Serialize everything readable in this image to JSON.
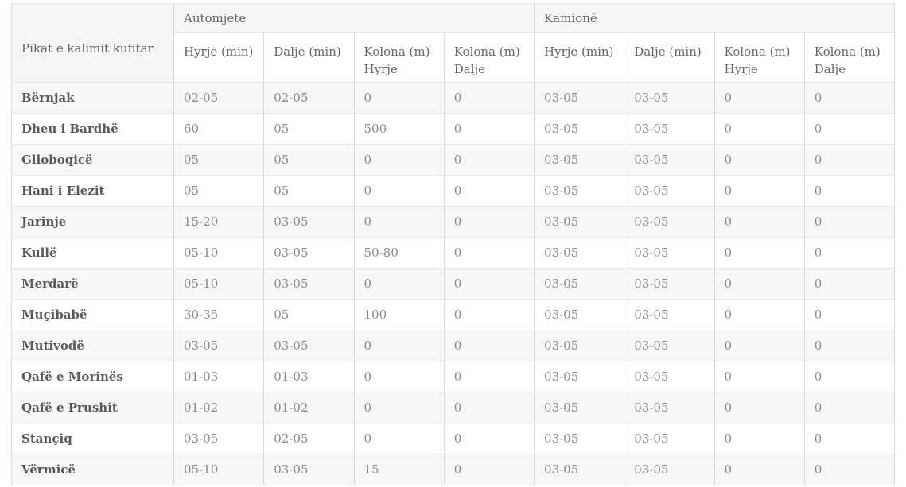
{
  "chart_data": {
    "type": "table",
    "title": "Pikat e kalimit kufitar",
    "column_groups": [
      "Automjete",
      "Kamionë"
    ],
    "columns": [
      "Hyrje (min)",
      "Dalje (min)",
      "Kolona (m) Hyrje",
      "Kolona (m) Dalje",
      "Hyrje (min)",
      "Dalje (min)",
      "Kolona (m) Hyrje",
      "Kolona (m) Dalje"
    ],
    "rows": [
      {
        "name": "Bërnjak",
        "values": [
          "02-05",
          "02-05",
          "0",
          "0",
          "03-05",
          "03-05",
          "0",
          "0"
        ]
      },
      {
        "name": "Dheu i Bardhë",
        "values": [
          "60",
          "05",
          "500",
          "0",
          "03-05",
          "03-05",
          "0",
          "0"
        ]
      },
      {
        "name": "Glloboqicë",
        "values": [
          "05",
          "05",
          "0",
          "0",
          "03-05",
          "03-05",
          "0",
          "0"
        ]
      },
      {
        "name": "Hani i Elezit",
        "values": [
          "05",
          "05",
          "0",
          "0",
          "03-05",
          "03-05",
          "0",
          "0"
        ]
      },
      {
        "name": "Jarinje",
        "values": [
          "15-20",
          "03-05",
          "0",
          "0",
          "03-05",
          "03-05",
          "0",
          "0"
        ]
      },
      {
        "name": "Kullë",
        "values": [
          "05-10",
          "03-05",
          "50-80",
          "0",
          "03-05",
          "03-05",
          "0",
          "0"
        ]
      },
      {
        "name": "Merdarë",
        "values": [
          "05-10",
          "03-05",
          "0",
          "0",
          "03-05",
          "03-05",
          "0",
          "0"
        ]
      },
      {
        "name": "Muçibabë",
        "values": [
          "30-35",
          "05",
          "100",
          "0",
          "03-05",
          "03-05",
          "0",
          "0"
        ]
      },
      {
        "name": "Mutivodë",
        "values": [
          "03-05",
          "03-05",
          "0",
          "0",
          "03-05",
          "03-05",
          "0",
          "0"
        ]
      },
      {
        "name": "Qafë e Morinës",
        "values": [
          "01-03",
          "01-03",
          "0",
          "0",
          "03-05",
          "03-05",
          "0",
          "0"
        ]
      },
      {
        "name": "Qafë e Prushit",
        "values": [
          "01-02",
          "01-02",
          "0",
          "0",
          "03-05",
          "03-05",
          "0",
          "0"
        ]
      },
      {
        "name": "Stançiq",
        "values": [
          "03-05",
          "02-05",
          "0",
          "0",
          "03-05",
          "03-05",
          "0",
          "0"
        ]
      },
      {
        "name": "Vërmicë",
        "values": [
          "05-10",
          "03-05",
          "15",
          "0",
          "03-05",
          "03-05",
          "0",
          "0"
        ]
      }
    ],
    "layout": {
      "striped_rows": true,
      "first_column_bold": true
    },
    "colors": {
      "stripe_background": "#f7f7f7",
      "header_background": "#f6f6f6",
      "border_vertical": "#d9d9d9",
      "border_horizontal": "#e6e6e6",
      "text_strong": "#5a5a5a",
      "text_header": "#666666",
      "text_value": "#8a8a8a"
    }
  }
}
